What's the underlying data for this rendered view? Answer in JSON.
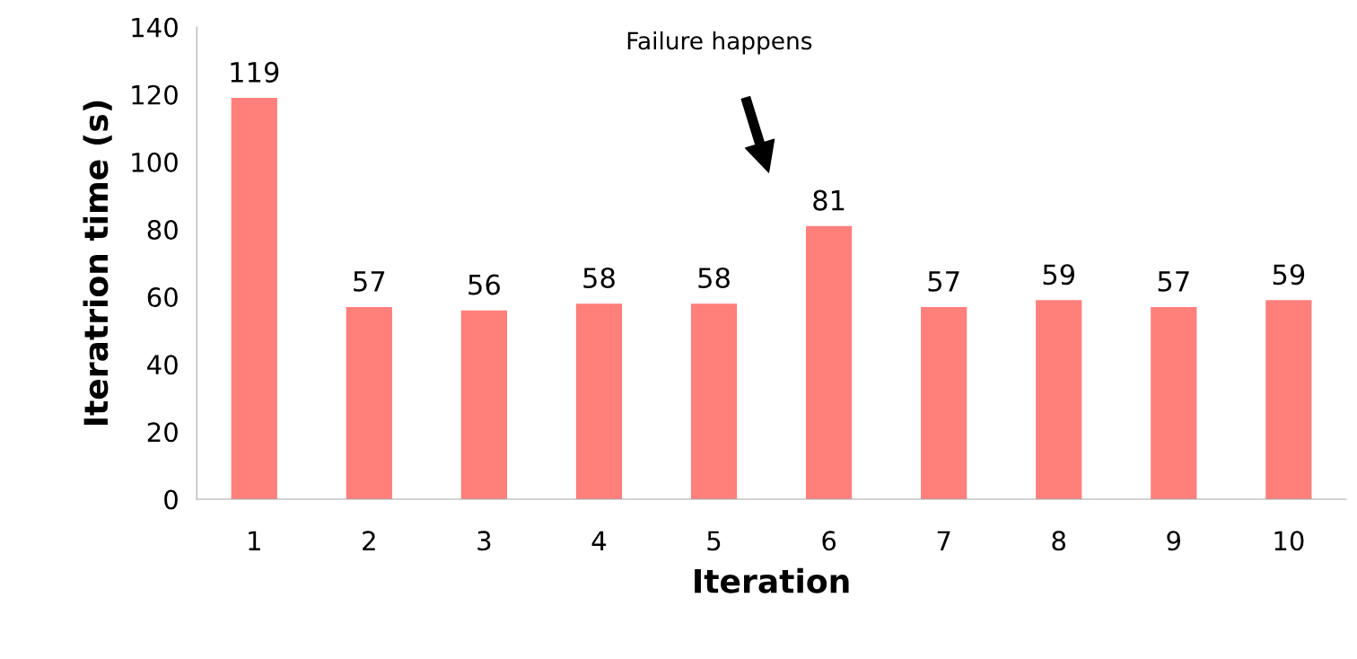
{
  "chart_data": {
    "type": "bar",
    "xlabel": "Iteration",
    "ylabel": "Iteratrion time (s)",
    "categories": [
      "1",
      "2",
      "3",
      "4",
      "5",
      "6",
      "7",
      "8",
      "9",
      "10"
    ],
    "values": [
      119,
      57,
      56,
      58,
      58,
      81,
      57,
      59,
      57,
      59
    ],
    "color": "#ff7f7b",
    "ylim": [
      0,
      140
    ],
    "yticks": [
      0,
      20,
      40,
      60,
      80,
      100,
      120,
      140
    ],
    "data_labels": true,
    "grid": false,
    "legend": false,
    "annotations": [
      "Failure happens"
    ]
  }
}
